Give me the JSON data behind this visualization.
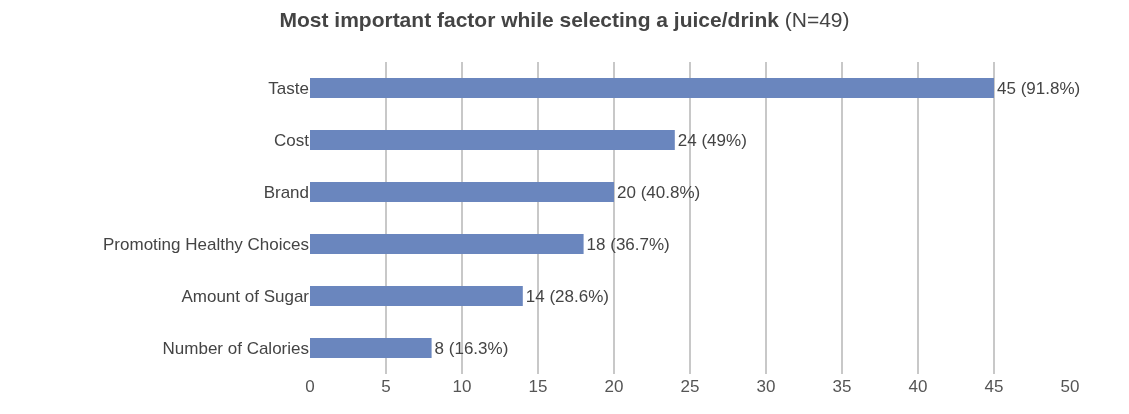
{
  "chart_data": {
    "type": "bar",
    "orientation": "horizontal",
    "title": "Most important factor while selecting a juice/drink",
    "subtitle": "(N=49)",
    "categories": [
      "Taste",
      "Cost",
      "Brand",
      "Promoting Healthy Choices",
      "Amount of Sugar",
      "Number of Calories"
    ],
    "values": [
      45,
      24,
      20,
      18,
      14,
      8
    ],
    "value_labels": [
      "45 (91.8%)",
      "24 (49%)",
      "20 (40.8%)",
      "18 (36.7%)",
      "14 (28.6%)",
      "8 (16.3%)"
    ],
    "color": "#6a86be",
    "xlim": [
      0,
      50
    ],
    "xticks": [
      0,
      5,
      10,
      15,
      20,
      25,
      30,
      35,
      40,
      45,
      50
    ],
    "grid": "x",
    "legend": false
  }
}
